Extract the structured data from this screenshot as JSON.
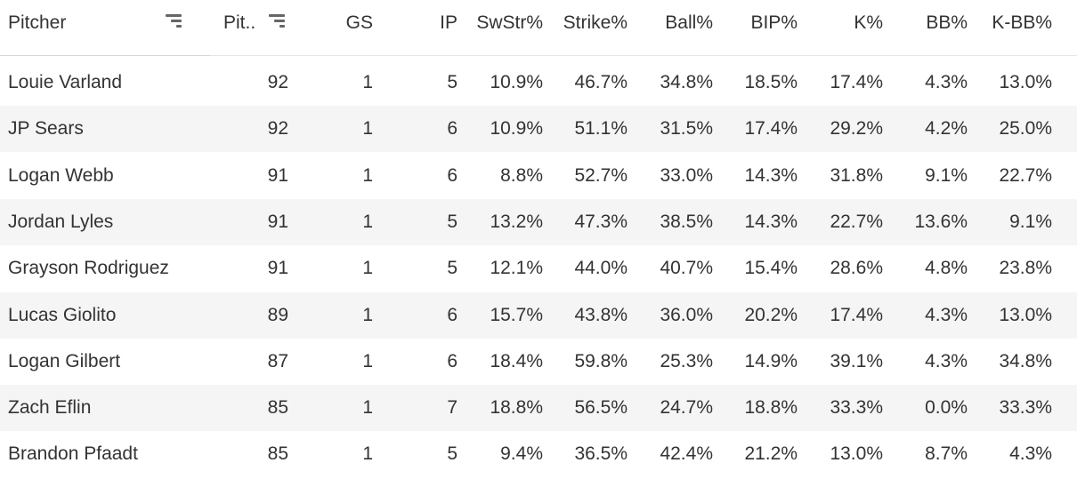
{
  "header": {
    "pitcher": "Pitcher",
    "pitches": "Pit..",
    "gs": "GS",
    "ip": "IP",
    "swstr": "SwStr%",
    "strike": "Strike%",
    "ball": "Ball%",
    "bip": "BIP%",
    "k": "K%",
    "bb": "BB%",
    "kbb": "K-BB%"
  },
  "rows": [
    {
      "pitcher": "Louie Varland",
      "pitches": "92",
      "gs": "1",
      "ip": "5",
      "swstr": "10.9%",
      "strike": "46.7%",
      "ball": "34.8%",
      "bip": "18.5%",
      "k": "17.4%",
      "bb": "4.3%",
      "kbb": "13.0%"
    },
    {
      "pitcher": "JP Sears",
      "pitches": "92",
      "gs": "1",
      "ip": "6",
      "swstr": "10.9%",
      "strike": "51.1%",
      "ball": "31.5%",
      "bip": "17.4%",
      "k": "29.2%",
      "bb": "4.2%",
      "kbb": "25.0%"
    },
    {
      "pitcher": "Logan Webb",
      "pitches": "91",
      "gs": "1",
      "ip": "6",
      "swstr": "8.8%",
      "strike": "52.7%",
      "ball": "33.0%",
      "bip": "14.3%",
      "k": "31.8%",
      "bb": "9.1%",
      "kbb": "22.7%"
    },
    {
      "pitcher": "Jordan Lyles",
      "pitches": "91",
      "gs": "1",
      "ip": "5",
      "swstr": "13.2%",
      "strike": "47.3%",
      "ball": "38.5%",
      "bip": "14.3%",
      "k": "22.7%",
      "bb": "13.6%",
      "kbb": "9.1%"
    },
    {
      "pitcher": "Grayson Rodriguez",
      "pitches": "91",
      "gs": "1",
      "ip": "5",
      "swstr": "12.1%",
      "strike": "44.0%",
      "ball": "40.7%",
      "bip": "15.4%",
      "k": "28.6%",
      "bb": "4.8%",
      "kbb": "23.8%"
    },
    {
      "pitcher": "Lucas Giolito",
      "pitches": "89",
      "gs": "1",
      "ip": "6",
      "swstr": "15.7%",
      "strike": "43.8%",
      "ball": "36.0%",
      "bip": "20.2%",
      "k": "17.4%",
      "bb": "4.3%",
      "kbb": "13.0%"
    },
    {
      "pitcher": "Logan Gilbert",
      "pitches": "87",
      "gs": "1",
      "ip": "6",
      "swstr": "18.4%",
      "strike": "59.8%",
      "ball": "25.3%",
      "bip": "14.9%",
      "k": "39.1%",
      "bb": "4.3%",
      "kbb": "34.8%"
    },
    {
      "pitcher": "Zach Eflin",
      "pitches": "85",
      "gs": "1",
      "ip": "7",
      "swstr": "18.8%",
      "strike": "56.5%",
      "ball": "24.7%",
      "bip": "18.8%",
      "k": "33.3%",
      "bb": "0.0%",
      "kbb": "33.3%"
    },
    {
      "pitcher": "Brandon Pfaadt",
      "pitches": "85",
      "gs": "1",
      "ip": "5",
      "swstr": "9.4%",
      "strike": "36.5%",
      "ball": "42.4%",
      "bip": "21.2%",
      "k": "13.0%",
      "bb": "8.7%",
      "kbb": "4.3%"
    }
  ]
}
